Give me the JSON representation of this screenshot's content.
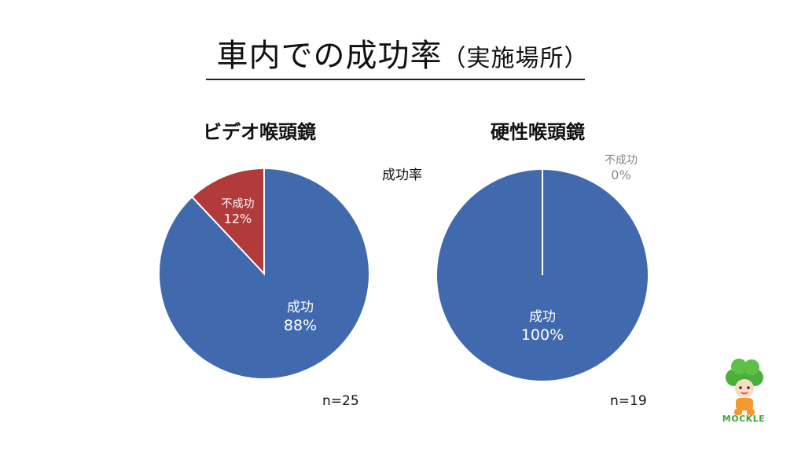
{
  "slide": {
    "title_main": "車内での成功率",
    "title_sub": "（実施場所）",
    "legend_label": "成功率",
    "logo_text": "MOCKLE"
  },
  "colors": {
    "success": "#4169AE",
    "failure": "#B23A3A",
    "label_on_slice": "#ffffff",
    "label_outside": "#8a8a8a"
  },
  "chart_data": [
    {
      "type": "pie",
      "title": "ビデオ喉頭鏡",
      "n_label": "n=25",
      "slices": [
        {
          "label": "成功",
          "value": 88,
          "value_label": "88%"
        },
        {
          "label": "不成功",
          "value": 12,
          "value_label": "12%"
        }
      ]
    },
    {
      "type": "pie",
      "title": "硬性喉頭鏡",
      "n_label": "n=19",
      "slices": [
        {
          "label": "成功",
          "value": 100,
          "value_label": "100%"
        },
        {
          "label": "不成功",
          "value": 0,
          "value_label": "0%"
        }
      ]
    }
  ]
}
